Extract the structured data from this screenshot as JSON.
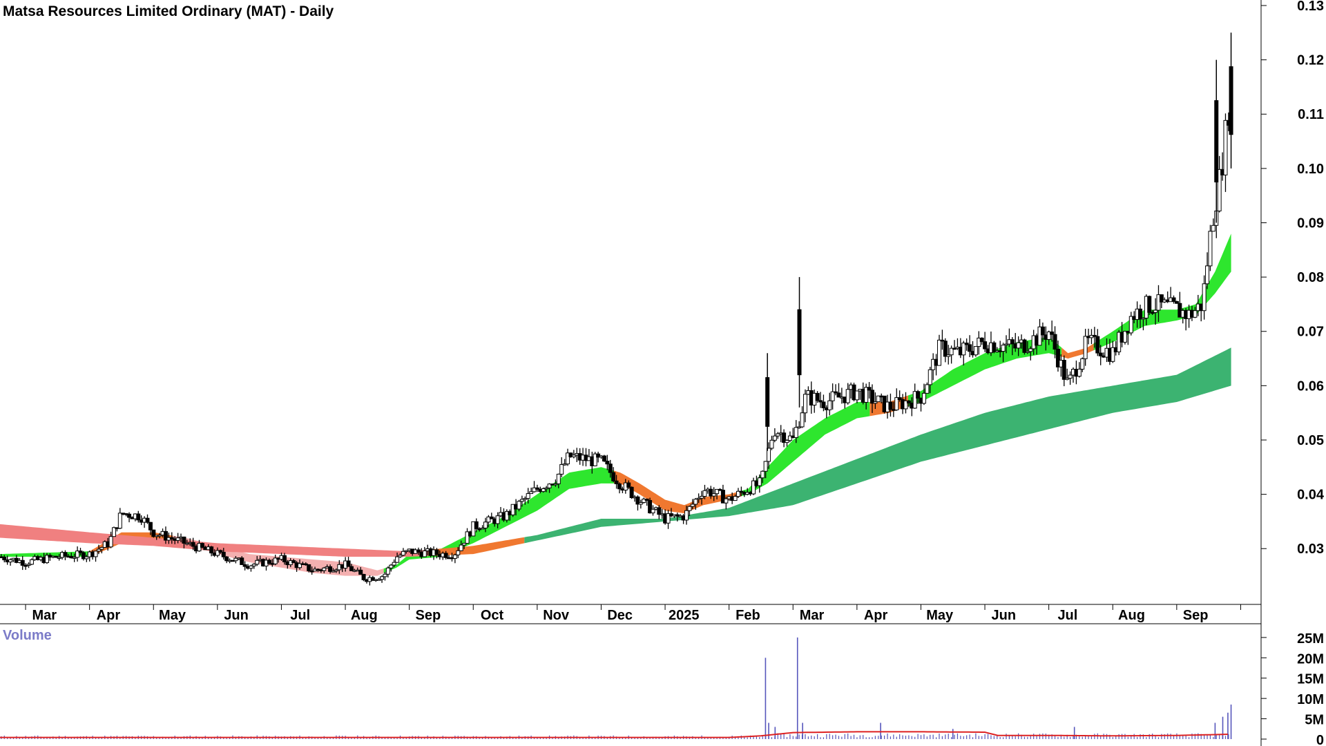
{
  "chart_title": "Matsa Resources Limited Ordinary (MAT) - Daily",
  "volume_label": "Volume",
  "colors": {
    "guppy_long_band": "#3cb371",
    "guppy_short_up": "#2ee62e",
    "guppy_short_down": "#f07830",
    "downtrend_band": "#f08080",
    "downtrend_soft": "#f4b0b0",
    "volume_bar": "#5555bb",
    "volume_ma": "#dd2222",
    "candle": "#000000"
  },
  "chart_data": {
    "type": "candlestick",
    "price_axis": {
      "ticks": [
        0.03,
        0.04,
        0.05,
        0.06,
        0.07,
        0.08,
        0.09,
        0.1,
        0.11,
        0.12,
        0.13
      ],
      "tick_labels": [
        "0.03",
        "0.04",
        "0.05",
        "0.06",
        "0.07",
        "0.08",
        "0.09",
        "0.10",
        "0.11",
        "0.12",
        "0.13"
      ],
      "range": [
        0.021,
        0.13
      ]
    },
    "time_axis": {
      "labels": [
        "Mar",
        "Apr",
        "May",
        "Jun",
        "Jul",
        "Aug",
        "Sep",
        "Oct",
        "Nov",
        "Dec",
        "2025",
        "Feb",
        "Mar",
        "Apr",
        "May",
        "Jun",
        "Jul",
        "Aug",
        "Sep"
      ],
      "label_positions": [
        0.5,
        1.5,
        2.5,
        3.5,
        4.5,
        5.5,
        6.5,
        7.5,
        8.5,
        9.5,
        10.5,
        11.5,
        12.5,
        13.5,
        14.5,
        15.5,
        16.5,
        17.5,
        18.5
      ],
      "month_range": [
        -0.4,
        19.0
      ],
      "last_month": 18.85
    },
    "volume_axis": {
      "tick_labels": [
        "25M",
        "20M",
        "15M",
        "10M",
        "5M",
        "0"
      ],
      "ticks": [
        25,
        20,
        15,
        10,
        5,
        0
      ],
      "range": [
        0,
        26
      ],
      "unit": "million shares"
    },
    "price_path": [
      [
        -0.4,
        0.0285
      ],
      [
        0,
        0.0275
      ],
      [
        0.5,
        0.0285
      ],
      [
        1,
        0.029
      ],
      [
        1.3,
        0.031
      ],
      [
        1.5,
        0.0365
      ],
      [
        1.8,
        0.036
      ],
      [
        2,
        0.033
      ],
      [
        2.5,
        0.031
      ],
      [
        3,
        0.029
      ],
      [
        3.5,
        0.027
      ],
      [
        4,
        0.028
      ],
      [
        4.5,
        0.026
      ],
      [
        5,
        0.027
      ],
      [
        5.3,
        0.0245
      ],
      [
        5.6,
        0.025
      ],
      [
        5.8,
        0.0285
      ],
      [
        6,
        0.0295
      ],
      [
        6.5,
        0.029
      ],
      [
        6.7,
        0.029
      ],
      [
        7,
        0.034
      ],
      [
        7.5,
        0.036
      ],
      [
        8,
        0.041
      ],
      [
        8.3,
        0.043
      ],
      [
        8.5,
        0.047
      ],
      [
        9,
        0.046
      ],
      [
        9.3,
        0.042
      ],
      [
        9.7,
        0.038
      ],
      [
        10,
        0.0355
      ],
      [
        10.3,
        0.036
      ],
      [
        10.6,
        0.041
      ],
      [
        11,
        0.039
      ],
      [
        11.3,
        0.041
      ],
      [
        11.5,
        0.042
      ],
      [
        11.7,
        0.052
      ],
      [
        12,
        0.05
      ],
      [
        12.2,
        0.058
      ],
      [
        12.5,
        0.057
      ],
      [
        13,
        0.059
      ],
      [
        13.5,
        0.056
      ],
      [
        14,
        0.058
      ],
      [
        14.3,
        0.067
      ],
      [
        14.6,
        0.066
      ],
      [
        15,
        0.068
      ],
      [
        15.5,
        0.067
      ],
      [
        16,
        0.07
      ],
      [
        16.3,
        0.06
      ],
      [
        16.6,
        0.068
      ],
      [
        17,
        0.066
      ],
      [
        17.3,
        0.073
      ],
      [
        17.6,
        0.075
      ],
      [
        18,
        0.074
      ],
      [
        18.2,
        0.073
      ],
      [
        18.4,
        0.075
      ],
      [
        18.55,
        0.09
      ],
      [
        18.7,
        0.1
      ],
      [
        18.85,
        0.115
      ]
    ],
    "wick_highlights": [
      {
        "month": 11.6,
        "low": 0.048,
        "high": 0.066
      },
      {
        "month": 12.1,
        "low": 0.056,
        "high": 0.08
      },
      {
        "month": 18.62,
        "low": 0.09,
        "high": 0.12
      },
      {
        "month": 18.85,
        "low": 0.1,
        "high": 0.125
      }
    ],
    "short_band": [
      [
        -0.4,
        0.0285,
        0.029
      ],
      [
        1,
        0.0285,
        0.0295
      ],
      [
        1.5,
        0.031,
        0.033
      ],
      [
        2,
        0.0315,
        0.033
      ],
      [
        2.5,
        0.031,
        0.032
      ],
      [
        3,
        0.029,
        0.0305
      ],
      [
        3.5,
        0.0275,
        0.029
      ],
      [
        4,
        0.0265,
        0.0285
      ],
      [
        4.5,
        0.0255,
        0.028
      ],
      [
        5,
        0.025,
        0.0275
      ],
      [
        5.5,
        0.025,
        0.026
      ],
      [
        5.8,
        0.0265,
        0.027
      ],
      [
        6,
        0.028,
        0.029
      ],
      [
        6.5,
        0.0285,
        0.03
      ],
      [
        7,
        0.031,
        0.033
      ],
      [
        7.5,
        0.034,
        0.036
      ],
      [
        8,
        0.037,
        0.04
      ],
      [
        8.5,
        0.041,
        0.044
      ],
      [
        9,
        0.042,
        0.045
      ],
      [
        9.3,
        0.042,
        0.044
      ],
      [
        9.6,
        0.04,
        0.042
      ],
      [
        10,
        0.037,
        0.039
      ],
      [
        10.3,
        0.0365,
        0.038
      ],
      [
        10.6,
        0.038,
        0.0395
      ],
      [
        11,
        0.039,
        0.04
      ],
      [
        11.3,
        0.04,
        0.041
      ],
      [
        11.6,
        0.042,
        0.045
      ],
      [
        12,
        0.046,
        0.05
      ],
      [
        12.5,
        0.051,
        0.054
      ],
      [
        13,
        0.054,
        0.057
      ],
      [
        13.5,
        0.055,
        0.057
      ],
      [
        14,
        0.057,
        0.059
      ],
      [
        14.5,
        0.06,
        0.063
      ],
      [
        15,
        0.063,
        0.066
      ],
      [
        15.5,
        0.065,
        0.068
      ],
      [
        16,
        0.066,
        0.069
      ],
      [
        16.3,
        0.065,
        0.066
      ],
      [
        16.6,
        0.066,
        0.067
      ],
      [
        17,
        0.068,
        0.07
      ],
      [
        17.5,
        0.071,
        0.074
      ],
      [
        18,
        0.072,
        0.074
      ],
      [
        18.3,
        0.073,
        0.075
      ],
      [
        18.6,
        0.077,
        0.081
      ],
      [
        18.85,
        0.081,
        0.088
      ]
    ],
    "long_band": [
      [
        -0.4,
        0.032,
        0.0345
      ],
      [
        1,
        0.031,
        0.033
      ],
      [
        2,
        0.0305,
        0.032
      ],
      [
        3,
        0.0295,
        0.031
      ],
      [
        4,
        0.029,
        0.0305
      ],
      [
        5,
        0.0285,
        0.03
      ],
      [
        6,
        0.0285,
        0.0295
      ],
      [
        7,
        0.029,
        0.0305
      ],
      [
        8,
        0.0315,
        0.0325
      ],
      [
        9,
        0.034,
        0.0355
      ],
      [
        10,
        0.035,
        0.0355
      ],
      [
        11,
        0.036,
        0.0375
      ],
      [
        12,
        0.038,
        0.042
      ],
      [
        13,
        0.042,
        0.0465
      ],
      [
        14,
        0.046,
        0.051
      ],
      [
        15,
        0.049,
        0.055
      ],
      [
        16,
        0.052,
        0.058
      ],
      [
        17,
        0.055,
        0.06
      ],
      [
        18,
        0.057,
        0.062
      ],
      [
        18.85,
        0.06,
        0.067
      ]
    ],
    "band_color_segments": [
      {
        "band": "short",
        "from": -0.4,
        "to": 1.0,
        "state": "up"
      },
      {
        "band": "short",
        "from": 1.0,
        "to": 2.3,
        "state": "transition"
      },
      {
        "band": "short",
        "from": 2.3,
        "to": 5.6,
        "state": "down"
      },
      {
        "band": "short",
        "from": 5.6,
        "to": 9.2,
        "state": "up"
      },
      {
        "band": "short",
        "from": 9.2,
        "to": 11.2,
        "state": "transition"
      },
      {
        "band": "short",
        "from": 11.2,
        "to": 13.2,
        "state": "up"
      },
      {
        "band": "short",
        "from": 13.2,
        "to": 13.8,
        "state": "transition"
      },
      {
        "band": "short",
        "from": 13.8,
        "to": 16.2,
        "state": "up"
      },
      {
        "band": "short",
        "from": 16.2,
        "to": 16.7,
        "state": "transition"
      },
      {
        "band": "short",
        "from": 16.7,
        "to": 18.85,
        "state": "up"
      },
      {
        "band": "long",
        "from": -0.4,
        "to": 6.3,
        "state": "down"
      },
      {
        "band": "long",
        "from": 6.3,
        "to": 7.8,
        "state": "transition"
      },
      {
        "band": "long",
        "from": 7.8,
        "to": 18.85,
        "state": "up"
      }
    ],
    "volume_spikes": [
      {
        "month": 11.57,
        "value": 20
      },
      {
        "month": 11.62,
        "value": 4
      },
      {
        "month": 11.72,
        "value": 3
      },
      {
        "month": 12.07,
        "value": 25
      },
      {
        "month": 12.15,
        "value": 4
      },
      {
        "month": 13.37,
        "value": 4
      },
      {
        "month": 14.5,
        "value": 2.5
      },
      {
        "month": 16.4,
        "value": 3
      },
      {
        "month": 18.6,
        "value": 4
      },
      {
        "month": 18.72,
        "value": 5.5
      },
      {
        "month": 18.8,
        "value": 6.5
      },
      {
        "month": 18.85,
        "value": 8.5
      }
    ],
    "volume_baseline": 0.7,
    "volume_ma": [
      [
        -0.4,
        0.4
      ],
      [
        5,
        0.4
      ],
      [
        11,
        0.4
      ],
      [
        11.5,
        0.8
      ],
      [
        12,
        1.6
      ],
      [
        13,
        1.8
      ],
      [
        14,
        1.8
      ],
      [
        15,
        1.7
      ],
      [
        15.2,
        0.9
      ],
      [
        16,
        0.9
      ],
      [
        17,
        0.8
      ],
      [
        18,
        0.9
      ],
      [
        18.85,
        1.2
      ]
    ]
  }
}
